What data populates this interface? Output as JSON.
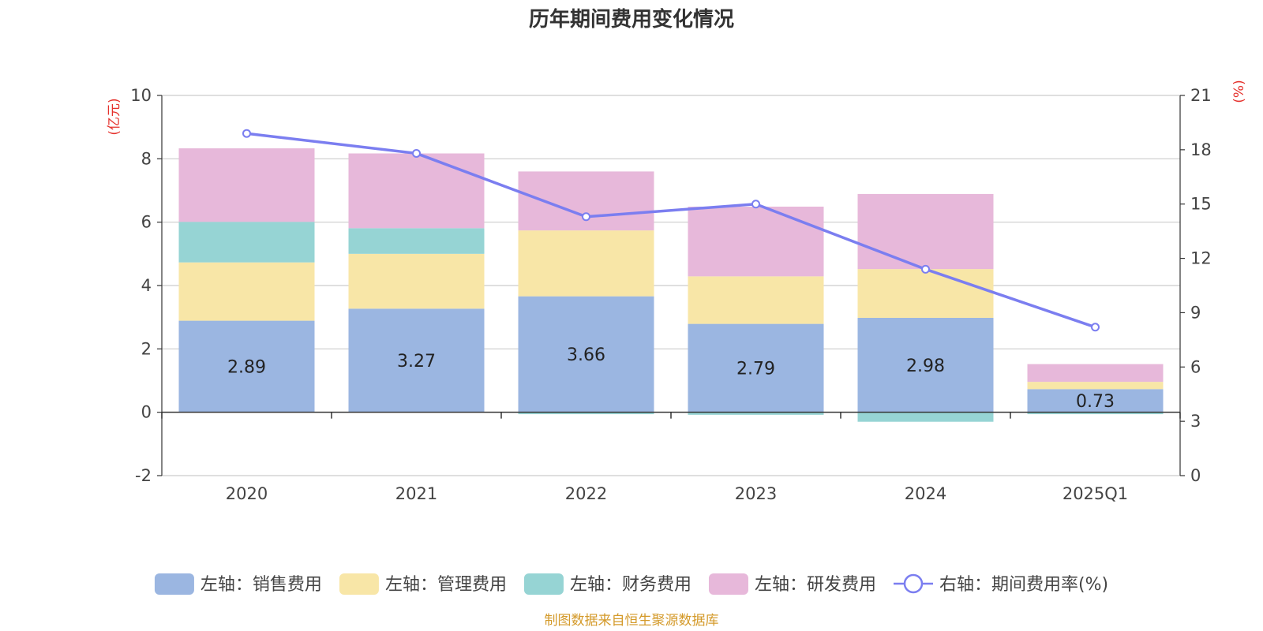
{
  "chart_data": {
    "type": "bar",
    "title": "历年期间费用变化情况",
    "categories": [
      "2020",
      "2021",
      "2022",
      "2023",
      "2024",
      "2025Q1"
    ],
    "left_axis": {
      "unit_label": "(亿元)",
      "ylim": [
        -2,
        10
      ],
      "ticks": [
        "-2",
        "0",
        "2",
        "4",
        "6",
        "8",
        "10"
      ]
    },
    "right_axis": {
      "unit_label": "(%)",
      "ylim": [
        0,
        21
      ],
      "ticks": [
        "0",
        "3",
        "6",
        "9",
        "12",
        "15",
        "18",
        "21"
      ]
    },
    "series": [
      {
        "name": "左轴：销售费用",
        "axis": "left",
        "kind": "bar",
        "color": "#9bb6e1",
        "values": [
          2.89,
          3.27,
          3.66,
          2.79,
          2.98,
          0.73
        ],
        "labels": [
          "2.89",
          "3.27",
          "3.66",
          "2.79",
          "2.98",
          "0.73"
        ]
      },
      {
        "name": "左轴：管理费用",
        "axis": "left",
        "kind": "bar",
        "color": "#f8e6a7",
        "values": [
          1.84,
          1.73,
          2.08,
          1.5,
          1.54,
          0.23
        ]
      },
      {
        "name": "左轴：财务费用",
        "axis": "left",
        "kind": "bar",
        "color": "#96d4d4",
        "values": [
          1.28,
          0.81,
          -0.06,
          -0.08,
          -0.3,
          -0.06
        ]
      },
      {
        "name": "左轴：研发费用",
        "axis": "left",
        "kind": "bar",
        "color": "#e7b8da",
        "values": [
          2.32,
          2.36,
          1.86,
          2.2,
          2.37,
          0.56
        ]
      },
      {
        "name": "右轴：期间费用率(%)",
        "axis": "right",
        "kind": "line",
        "color": "#7b7ef0",
        "values": [
          18.9,
          17.8,
          14.3,
          15.0,
          11.4,
          8.2
        ]
      }
    ],
    "grid": true,
    "legend_position": "bottom"
  },
  "footer": {
    "source": "制图数据来自恒生聚源数据库",
    "color": "#d49a2a"
  },
  "colors": {
    "unit_label": "#e5322d",
    "axis": "#333333",
    "grid": "#cccccc"
  }
}
